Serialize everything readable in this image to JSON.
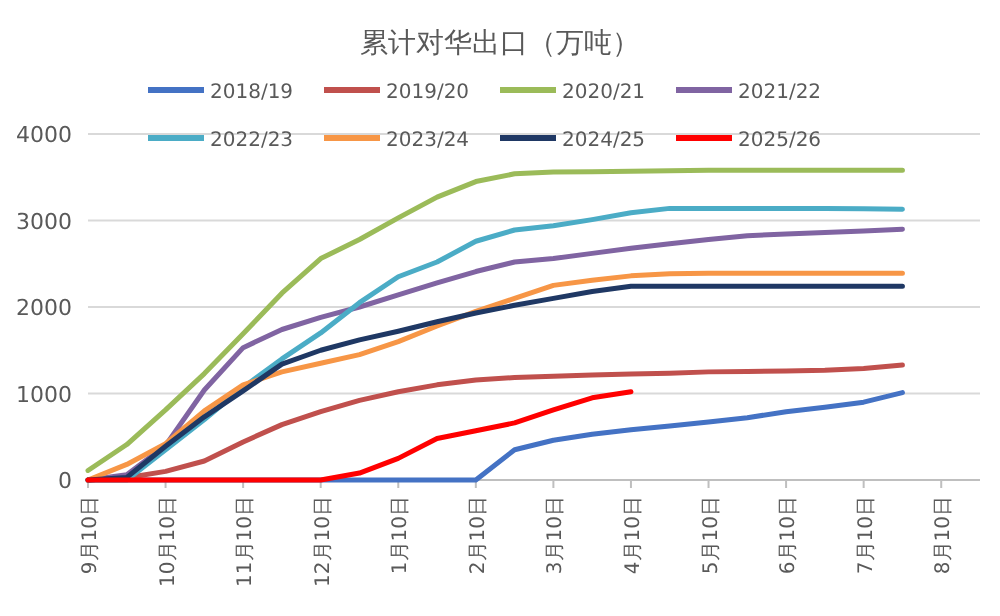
{
  "chart_data": {
    "type": "line",
    "title": "累计对华出口（万吨）",
    "legend": "top",
    "grid": "y",
    "ylim": [
      0,
      4000
    ],
    "yticks": [
      0,
      1000,
      2000,
      3000,
      4000
    ],
    "categories": [
      "9月10日",
      null,
      "10月10日",
      null,
      "11月10日",
      null,
      "12月10日",
      null,
      "1月10日",
      null,
      "2月10日",
      null,
      "3月10日",
      null,
      "4月10日",
      null,
      "5月10日",
      null,
      "6月10日",
      null,
      "7月10日",
      null,
      "8月10日",
      null
    ],
    "series": [
      {
        "name": "2018/19",
        "color": "#4472c4",
        "values": [
          0,
          0,
          0,
          0,
          0,
          0,
          0,
          0,
          0,
          0,
          0,
          350,
          460,
          530,
          580,
          625,
          670,
          720,
          790,
          840,
          900,
          1010,
          null,
          null
        ]
      },
      {
        "name": "2019/20",
        "color": "#c0504d",
        "values": [
          0,
          25,
          100,
          220,
          440,
          640,
          790,
          920,
          1020,
          1100,
          1155,
          1185,
          1200,
          1215,
          1225,
          1235,
          1250,
          1255,
          1260,
          1268,
          1290,
          1330,
          null,
          null
        ]
      },
      {
        "name": "2020/21",
        "color": "#9bbb59",
        "values": [
          110,
          410,
          810,
          1230,
          1690,
          2160,
          2560,
          2780,
          3030,
          3270,
          3450,
          3540,
          3560,
          3565,
          3570,
          3575,
          3580,
          3580,
          3580,
          3580,
          3580,
          3580,
          null,
          null
        ]
      },
      {
        "name": "2021/22",
        "color": "#8064a2",
        "values": [
          0,
          60,
          400,
          1040,
          1530,
          1740,
          1880,
          2000,
          2140,
          2280,
          2410,
          2520,
          2560,
          2620,
          2680,
          2730,
          2780,
          2825,
          2845,
          2860,
          2880,
          2900,
          null,
          null
        ]
      },
      {
        "name": "2022/23",
        "color": "#4bacc6",
        "values": [
          0,
          0,
          350,
          700,
          1070,
          1400,
          1700,
          2050,
          2350,
          2520,
          2760,
          2890,
          2940,
          3010,
          3090,
          3140,
          3140,
          3140,
          3140,
          3140,
          3135,
          3130,
          null,
          null
        ]
      },
      {
        "name": "2023/24",
        "color": "#f79646",
        "values": [
          0,
          180,
          420,
          800,
          1100,
          1250,
          1350,
          1450,
          1600,
          1780,
          1950,
          2100,
          2250,
          2310,
          2360,
          2385,
          2390,
          2390,
          2390,
          2390,
          2390,
          2390,
          null,
          null
        ]
      },
      {
        "name": "2024/25",
        "color": "#1f3864",
        "values": [
          0,
          30,
          390,
          730,
          1030,
          1340,
          1500,
          1620,
          1720,
          1830,
          1930,
          2020,
          2100,
          2180,
          2240,
          2240,
          2240,
          2240,
          2240,
          2240,
          2240,
          2240,
          null,
          null
        ]
      },
      {
        "name": "2025/26",
        "color": "#ff0000",
        "values": [
          0,
          0,
          0,
          0,
          0,
          0,
          0,
          80,
          250,
          480,
          570,
          660,
          810,
          950,
          1020,
          null,
          null,
          null,
          null,
          null,
          null,
          null,
          null,
          null
        ]
      }
    ]
  }
}
